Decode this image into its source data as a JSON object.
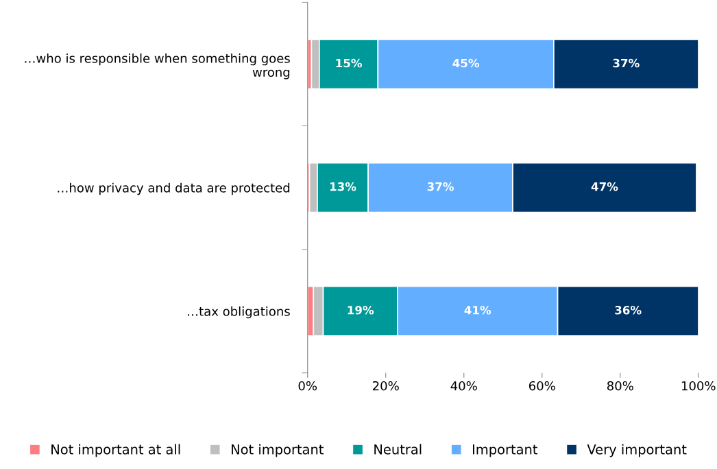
{
  "chart_data": {
    "type": "bar",
    "orientation": "horizontal",
    "stacked": true,
    "categories": [
      "…who is responsible when something goes wrong",
      "…how privacy and data are protected",
      "…tax obligations"
    ],
    "series": [
      {
        "name": "Not important at all",
        "color": "#ff7c80",
        "values": [
          1,
          0.5,
          1.5
        ],
        "value_labels": [
          null,
          null,
          null
        ]
      },
      {
        "name": "Not important",
        "color": "#bfbfbf",
        "values": [
          2,
          2,
          2.5
        ],
        "value_labels": [
          null,
          null,
          null
        ]
      },
      {
        "name": "Neutral",
        "color": "#009999",
        "values": [
          15,
          13,
          19
        ],
        "value_labels": [
          "15%",
          "13%",
          "19%"
        ]
      },
      {
        "name": "Important",
        "color": "#63aeff",
        "values": [
          45,
          37,
          41
        ],
        "value_labels": [
          "45%",
          "37%",
          "41%"
        ]
      },
      {
        "name": "Very important",
        "color": "#003366",
        "values": [
          37,
          47,
          36
        ],
        "value_labels": [
          "37%",
          "47%",
          "36%"
        ]
      }
    ],
    "xlim": [
      0,
      100
    ],
    "xticks": [
      {
        "value": 0,
        "label": "0%"
      },
      {
        "value": 20,
        "label": "20%"
      },
      {
        "value": 40,
        "label": "40%"
      },
      {
        "value": 60,
        "label": "60%"
      },
      {
        "value": 80,
        "label": "80%"
      },
      {
        "value": 100,
        "label": "100%"
      }
    ],
    "grid": false,
    "legend": "bottom"
  }
}
